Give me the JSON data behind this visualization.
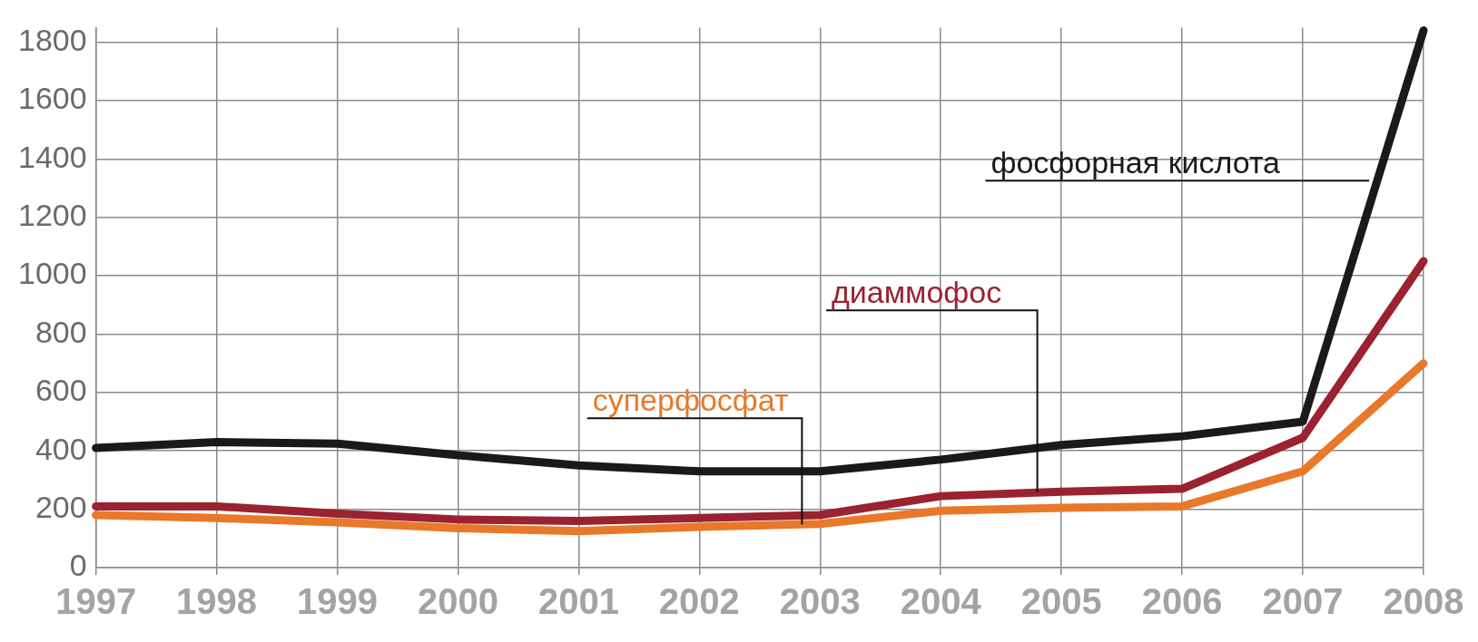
{
  "chart_data": {
    "type": "line",
    "categories": [
      "1997",
      "1998",
      "1999",
      "2000",
      "2001",
      "2002",
      "2003",
      "2004",
      "2005",
      "2006",
      "2007",
      "2008"
    ],
    "series": [
      {
        "name": "фосфорная кислота",
        "color": "#1a1a1a",
        "values": [
          410,
          430,
          425,
          385,
          350,
          330,
          330,
          370,
          420,
          450,
          500,
          1840
        ]
      },
      {
        "name": "диаммофос",
        "color": "#9b2230",
        "values": [
          210,
          210,
          185,
          165,
          160,
          170,
          180,
          245,
          260,
          270,
          445,
          1050
        ]
      },
      {
        "name": "суперфосфат",
        "color": "#e8782a",
        "values": [
          180,
          170,
          155,
          135,
          125,
          140,
          150,
          195,
          205,
          210,
          330,
          700
        ]
      }
    ],
    "ylim": [
      0,
      1850
    ],
    "yticks": [
      0,
      200,
      400,
      600,
      800,
      1000,
      1200,
      1400,
      1600,
      1800
    ],
    "grid": true,
    "legend": false,
    "marker": "none",
    "line_style": "solid"
  }
}
